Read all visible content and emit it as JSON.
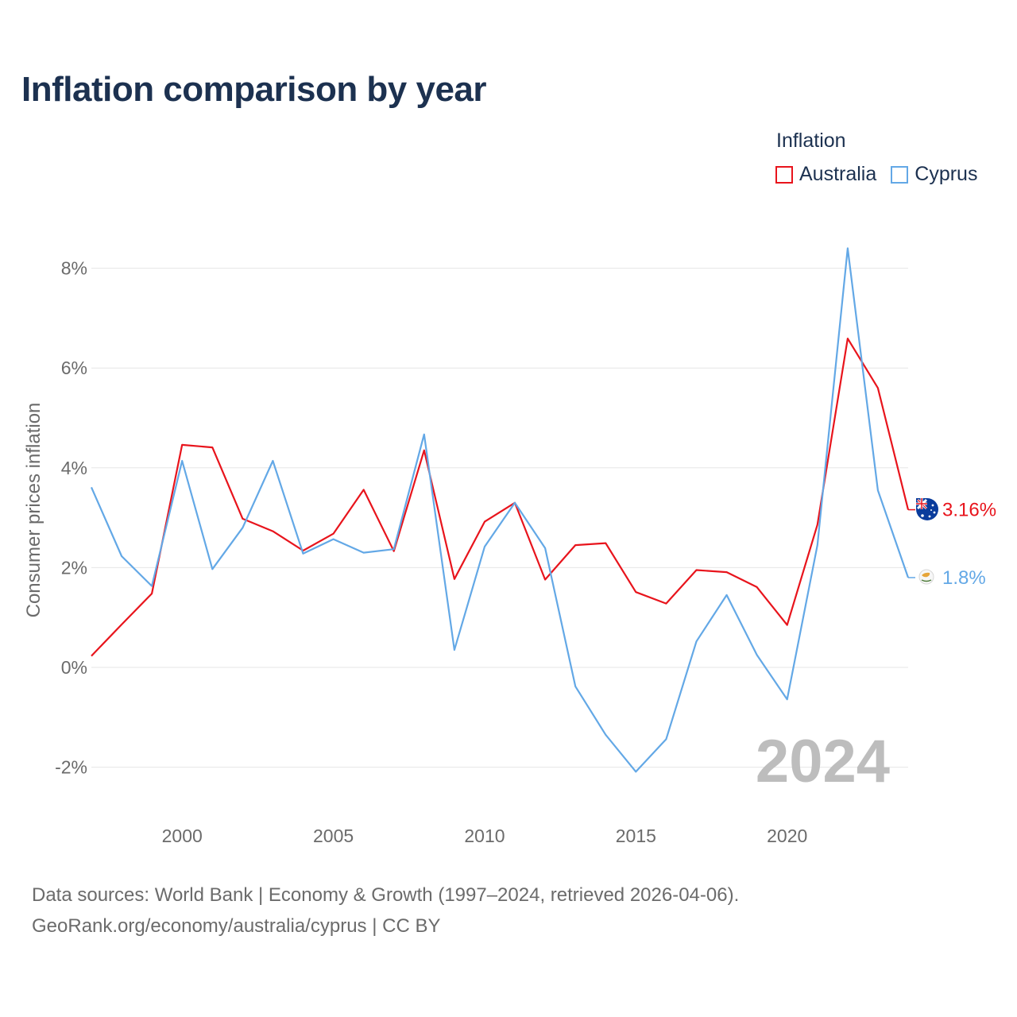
{
  "title": "Inflation comparison by year",
  "legend": {
    "title": "Inflation",
    "items": [
      {
        "label": "Australia",
        "color": "#e8141c"
      },
      {
        "label": "Cyprus",
        "color": "#63a8e6"
      }
    ]
  },
  "footer": {
    "line1": "Data sources: World Bank | Economy & Growth (1997–2024, retrieved 2026-04-06).",
    "line2": "GeoRank.org/economy/australia/cyprus | CC BY"
  },
  "chart_data": {
    "type": "line",
    "title": "Inflation comparison by year",
    "xlabel": "",
    "ylabel": "Consumer prices inflation",
    "xlim": [
      1997,
      2024
    ],
    "ylim": [
      -3,
      8.5
    ],
    "yticks": [
      {
        "value": 8,
        "label": "8%"
      },
      {
        "value": 6,
        "label": "6%"
      },
      {
        "value": 4,
        "label": "4%"
      },
      {
        "value": 2,
        "label": "2%"
      },
      {
        "value": 0,
        "label": "0%"
      },
      {
        "value": -2,
        "label": "-2%"
      }
    ],
    "xticks": [
      {
        "value": 2000,
        "label": "2000"
      },
      {
        "value": 2005,
        "label": "2005"
      },
      {
        "value": 2010,
        "label": "2010"
      },
      {
        "value": 2015,
        "label": "2015"
      },
      {
        "value": 2020,
        "label": "2020"
      }
    ],
    "grid": true,
    "current_year_label": "2024",
    "x": [
      1997,
      1998,
      1999,
      2000,
      2001,
      2002,
      2003,
      2004,
      2005,
      2006,
      2007,
      2008,
      2009,
      2010,
      2011,
      2012,
      2013,
      2014,
      2015,
      2016,
      2017,
      2018,
      2019,
      2020,
      2021,
      2022,
      2023,
      2024
    ],
    "series": [
      {
        "name": "Australia",
        "color": "#e8141c",
        "values": [
          0.23,
          0.86,
          1.48,
          4.46,
          4.41,
          2.98,
          2.73,
          2.34,
          2.68,
          3.56,
          2.33,
          4.35,
          1.77,
          2.92,
          3.3,
          1.76,
          2.45,
          2.49,
          1.51,
          1.28,
          1.95,
          1.91,
          1.61,
          0.85,
          2.86,
          6.59,
          5.6,
          3.16
        ],
        "end_label": "3.16%"
      },
      {
        "name": "Cyprus",
        "color": "#63a8e6",
        "values": [
          3.61,
          2.23,
          1.63,
          4.14,
          1.97,
          2.8,
          4.14,
          2.28,
          2.57,
          2.3,
          2.37,
          4.67,
          0.35,
          2.42,
          3.3,
          2.39,
          -0.38,
          -1.35,
          -2.09,
          -1.44,
          0.52,
          1.45,
          0.25,
          -0.64,
          2.45,
          8.4,
          3.55,
          1.8
        ],
        "end_label": "1.8%"
      }
    ]
  }
}
